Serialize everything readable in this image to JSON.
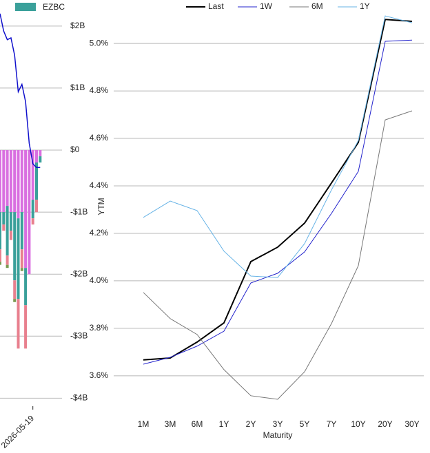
{
  "chart_data": [
    {
      "type": "bar",
      "stacked": true,
      "categories": [
        null,
        null,
        null,
        null,
        null,
        null,
        null,
        null,
        null,
        "2026-05-19",
        null,
        null
      ],
      "series": [
        {
          "color": "#d96fe0",
          "values": [
            -1.0,
            -1.0,
            -0.9,
            -1.0,
            -1.0,
            -1.1,
            -1.0,
            -1.9,
            -2.0,
            -0.8,
            -0.2,
            -0.1
          ]
        },
        {
          "name": "EZBC",
          "color": "#3aa09a",
          "values": [
            -0.6,
            -0.2,
            -0.8,
            -0.3,
            -1.1,
            -1.3,
            -0.6,
            -0.6,
            0,
            -0.3,
            -0.6,
            -0.1
          ]
        },
        {
          "color": "#e8808e",
          "values": [
            -0.2,
            -0.1,
            -0.15,
            -0.15,
            -0.3,
            -0.8,
            -0.3,
            -0.7,
            0,
            -0.1,
            -0.2,
            0
          ]
        },
        {
          "color": "#7a9a50",
          "values": [
            -0.05,
            0,
            -0.05,
            0,
            -0.05,
            0,
            -0.05,
            0,
            0,
            0,
            0,
            0
          ]
        },
        {
          "type": "line",
          "color": "#1010cc",
          "values": [
            2.2,
            1.92,
            1.78,
            1.81,
            1.53,
            0.94,
            1.06,
            0.78,
            0.11,
            -0.22,
            -0.28,
            -0.28
          ]
        }
      ],
      "ylim": [
        -4.24,
        2.42
      ],
      "yticks": [
        {
          "value": 2,
          "label": "$2B"
        },
        {
          "value": 1,
          "label": "$1B"
        },
        {
          "value": 0,
          "label": "$0"
        },
        {
          "value": -1,
          "label": "-$1B"
        },
        {
          "value": -2,
          "label": "-$2B"
        },
        {
          "value": -3,
          "label": "-$3B"
        },
        {
          "value": -4,
          "label": "-$4B"
        }
      ],
      "grid": true
    },
    {
      "type": "line",
      "y_label": "YTM",
      "x_label": "Maturity",
      "categories": [
        "1M",
        "3M",
        "6M",
        "1Y",
        "2Y",
        "3Y",
        "5Y",
        "7Y",
        "10Y",
        "20Y",
        "30Y"
      ],
      "series": [
        {
          "name": "Last",
          "color": "#000000",
          "width": 2,
          "values": [
            3.667,
            3.675,
            3.742,
            3.823,
            4.081,
            4.142,
            4.243,
            4.412,
            4.583,
            5.101,
            5.093
          ]
        },
        {
          "name": "1W",
          "color": "#2222cc",
          "width": 1,
          "values": [
            3.649,
            3.678,
            3.725,
            3.788,
            3.991,
            4.032,
            4.122,
            4.284,
            4.461,
            5.009,
            5.014
          ]
        },
        {
          "name": "6M",
          "color": "#777777",
          "width": 1,
          "values": [
            3.951,
            3.841,
            3.774,
            3.626,
            3.516,
            3.501,
            3.617,
            3.82,
            4.064,
            4.678,
            4.716
          ]
        },
        {
          "name": "1Y",
          "color": "#66b3e6",
          "width": 1,
          "values": [
            4.267,
            4.336,
            4.296,
            4.125,
            4.02,
            4.014,
            4.157,
            4.383,
            4.591,
            5.116,
            5.087
          ]
        }
      ],
      "ylim": [
        3.443,
        5.154
      ],
      "yticks": [
        {
          "value": 3.6,
          "label": "3.6%"
        },
        {
          "value": 3.8,
          "label": "3.8%"
        },
        {
          "value": 4.0,
          "label": "4.0%"
        },
        {
          "value": 4.2,
          "label": "4.2%"
        },
        {
          "value": 4.4,
          "label": "4.4%"
        },
        {
          "value": 4.6,
          "label": "4.6%"
        },
        {
          "value": 4.8,
          "label": "4.8%"
        },
        {
          "value": 5.0,
          "label": "5.0%"
        }
      ],
      "grid": true
    }
  ]
}
